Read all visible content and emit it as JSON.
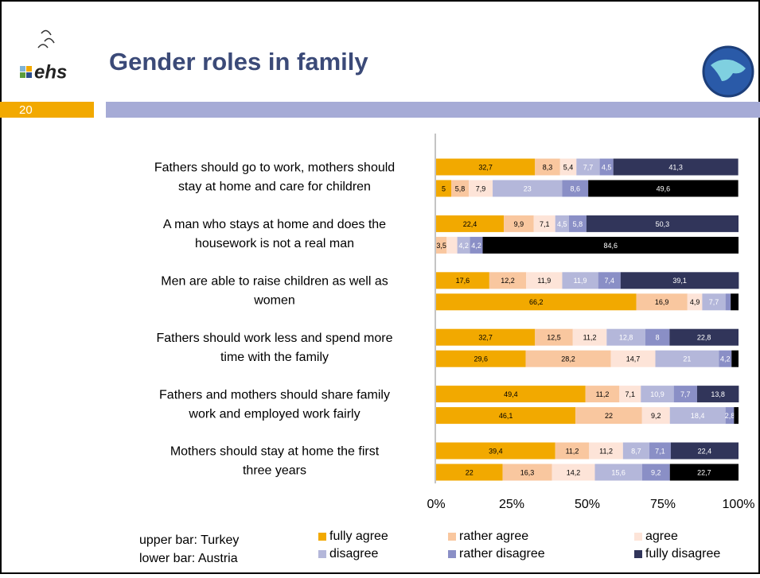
{
  "header": {
    "title": "Gender roles in family",
    "logo_text": "ehs",
    "page_number": "20"
  },
  "notes": [
    "upper bar: Turkey",
    "lower bar: Austria"
  ],
  "chart_data": {
    "type": "stacked_bar_horizontal",
    "categories": [
      [
        "Fathers should go to work, mothers should",
        "stay at home and care for children"
      ],
      [
        "A man who stays at home and does the",
        "housework is not a real man"
      ],
      [
        "Men are able to raise children as well as",
        "women"
      ],
      [
        "Fathers should work less and spend more",
        "time with the family"
      ],
      [
        "Fathers and mothers should share family",
        "work and employed work fairly"
      ],
      [
        "Mothers should stay at home the first",
        "three years"
      ]
    ],
    "series": [
      {
        "name": "fully agree",
        "color": "#f2a900",
        "values": [
          [
            32.7,
            5
          ],
          [
            22.4,
            null
          ],
          [
            17.6,
            66.2
          ],
          [
            32.7,
            29.6
          ],
          [
            49.4,
            46.1
          ],
          [
            39.4,
            22
          ]
        ],
        "value_labels": [
          [
            "32,7",
            "5"
          ],
          [
            "22,4",
            null
          ],
          [
            "17,6",
            "66,2"
          ],
          [
            "32,7",
            "29,6"
          ],
          [
            "49,4",
            "46,1"
          ],
          [
            "39,4",
            "22"
          ]
        ]
      },
      {
        "name": "rather agree",
        "color": "#f9c79f",
        "values": [
          [
            8.3,
            5.8
          ],
          [
            9.9,
            3.5
          ],
          [
            12.2,
            16.9
          ],
          [
            12.5,
            28.2
          ],
          [
            11.2,
            22
          ],
          [
            11.2,
            16.3
          ]
        ],
        "value_labels": [
          [
            "8,3",
            "5,8"
          ],
          [
            "9,9",
            "3,5"
          ],
          [
            "12,2",
            "16,9"
          ],
          [
            "12,5",
            "28,2"
          ],
          [
            "11,2",
            "22"
          ],
          [
            "11,2",
            "16,3"
          ]
        ]
      },
      {
        "name": "agree",
        "color": "#fde4d8",
        "values": [
          [
            5.4,
            7.9
          ],
          [
            7.1,
            3.5
          ],
          [
            11.9,
            4.9
          ],
          [
            11.2,
            14.7
          ],
          [
            7.1,
            9.2
          ],
          [
            11.2,
            14.2
          ]
        ],
        "value_labels": [
          [
            "5,4",
            "7,9"
          ],
          [
            "7,1",
            null
          ],
          [
            "11,9",
            "4,9"
          ],
          [
            "11,2",
            "14,7"
          ],
          [
            "7,1",
            "9,2"
          ],
          [
            "11,2",
            "14,2"
          ]
        ]
      },
      {
        "name": "disagree",
        "color": "#b4b7da",
        "values": [
          [
            7.7,
            23
          ],
          [
            4.5,
            4.2
          ],
          [
            11.9,
            7.7
          ],
          [
            12.8,
            21
          ],
          [
            10.9,
            18.4
          ],
          [
            8.7,
            15.6
          ]
        ],
        "value_labels": [
          [
            "7,7",
            "23"
          ],
          [
            "4,5",
            "4,2"
          ],
          [
            "11,9",
            "7,7"
          ],
          [
            "12,8",
            "21"
          ],
          [
            "10,9",
            "18,4"
          ],
          [
            "8,7",
            "15,6"
          ]
        ]
      },
      {
        "name": "rather disagree",
        "color": "#8a8fc6",
        "values": [
          [
            4.5,
            8.6
          ],
          [
            5.8,
            4.2
          ],
          [
            7.4,
            1.7
          ],
          [
            8,
            4.2
          ],
          [
            7.7,
            2.8
          ],
          [
            7.1,
            9.2
          ]
        ],
        "value_labels": [
          [
            "4,5",
            "8,6"
          ],
          [
            "5,8",
            "4,2"
          ],
          [
            "7,4",
            null
          ],
          [
            "8",
            "4,2"
          ],
          [
            "7,7",
            "2,8"
          ],
          [
            "7,1",
            "9,2"
          ]
        ]
      },
      {
        "name": "fully disagree",
        "color": "#31355a",
        "lower_color": "#000000",
        "values": [
          [
            41.3,
            49.6
          ],
          [
            50.3,
            84.6
          ],
          [
            39.1,
            2.6
          ],
          [
            22.8,
            2.3
          ],
          [
            13.8,
            1.5
          ],
          [
            22.4,
            22.7
          ]
        ],
        "value_labels": [
          [
            "41,3",
            "49,6"
          ],
          [
            "50,3",
            "84,6"
          ],
          [
            "39,1",
            null
          ],
          [
            "22,8",
            null
          ],
          [
            "13,8",
            null
          ],
          [
            "22,4",
            "22,7"
          ]
        ]
      }
    ],
    "xlim": [
      0,
      100
    ],
    "xticks": [
      {
        "value": 0,
        "label": "0%"
      },
      {
        "value": 25,
        "label": "25%"
      },
      {
        "value": 50,
        "label": "50%"
      },
      {
        "value": 75,
        "label": "75%"
      },
      {
        "value": 100,
        "label": "100%"
      }
    ]
  }
}
